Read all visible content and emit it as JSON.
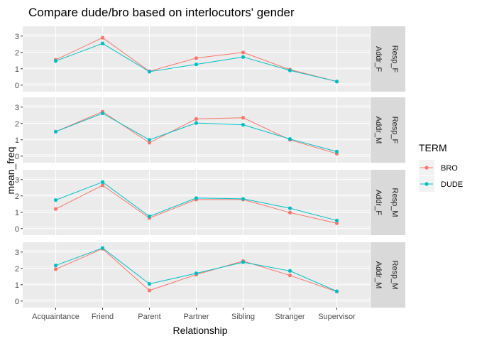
{
  "chart_data": {
    "type": "line",
    "title": "Compare dude/bro based on interlocutors' gender",
    "xlabel": "Relationship",
    "ylabel": "mean_freq",
    "categories": [
      "Acquaintance",
      "Friend",
      "Parent",
      "Partner",
      "Sibling",
      "Stranger",
      "Supervisor"
    ],
    "y_ticks": [
      "0",
      "1",
      "2",
      "3"
    ],
    "ylim": [
      -0.4,
      3.6
    ],
    "grid": true,
    "legend": {
      "title": "TERM",
      "placement": "right",
      "entries": [
        {
          "name": "BRO",
          "color": "#f8766d"
        },
        {
          "name": "DUDE",
          "color": "#00bfc4"
        }
      ]
    },
    "panels": [
      {
        "strip_outer": "Resp_F",
        "strip_inner": "Addr_F",
        "series": [
          {
            "name": "BRO",
            "values": [
              1.55,
              2.9,
              0.85,
              1.65,
              2.0,
              0.95,
              0.22
            ]
          },
          {
            "name": "DUDE",
            "values": [
              1.48,
              2.55,
              0.82,
              1.27,
              1.72,
              0.9,
              0.22
            ]
          }
        ]
      },
      {
        "strip_outer": "Resp_F",
        "strip_inner": "Addr_M",
        "series": [
          {
            "name": "BRO",
            "values": [
              1.5,
              2.72,
              0.82,
              2.28,
              2.35,
              1.0,
              0.15
            ]
          },
          {
            "name": "DUDE",
            "values": [
              1.5,
              2.62,
              1.0,
              2.03,
              1.92,
              1.05,
              0.28
            ]
          }
        ]
      },
      {
        "strip_outer": "Resp_M",
        "strip_inner": "Addr_F",
        "series": [
          {
            "name": "BRO",
            "values": [
              1.2,
              2.65,
              0.65,
              1.78,
              1.78,
              0.98,
              0.33
            ]
          },
          {
            "name": "DUDE",
            "values": [
              1.75,
              2.85,
              0.75,
              1.87,
              1.82,
              1.25,
              0.5
            ]
          }
        ]
      },
      {
        "strip_outer": "Resp_M",
        "strip_inner": "Addr_M",
        "series": [
          {
            "name": "BRO",
            "values": [
              1.95,
              3.2,
              0.65,
              1.62,
              2.45,
              1.57,
              0.58
            ]
          },
          {
            "name": "DUDE",
            "values": [
              2.18,
              3.25,
              1.05,
              1.7,
              2.38,
              1.85,
              0.6
            ]
          }
        ]
      }
    ]
  }
}
